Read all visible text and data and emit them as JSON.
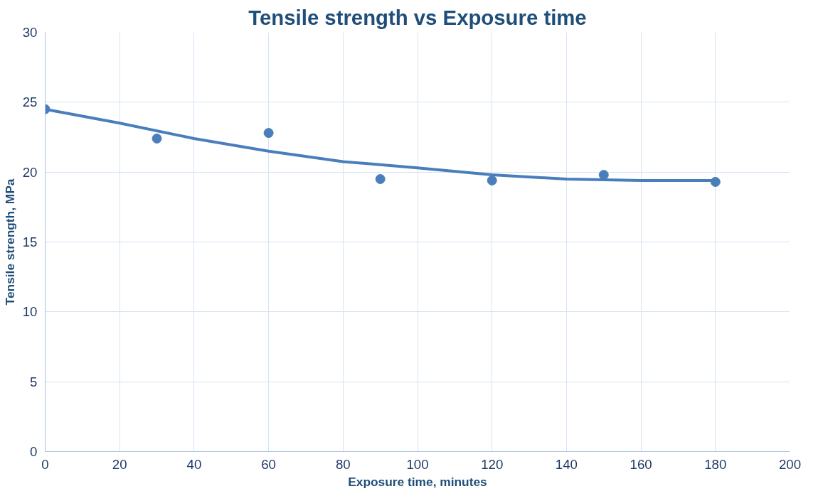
{
  "chart_data": {
    "type": "scatter",
    "title": "Tensile strength vs Exposure time",
    "xlabel": "Exposure time, minutes",
    "ylabel": "Tensile strength, MPa",
    "series": [
      {
        "color": "#4a7ebb",
        "marker": "circle",
        "x": [
          0,
          30,
          60,
          90,
          120,
          150,
          180
        ],
        "values": [
          24.5,
          22.4,
          22.8,
          19.5,
          19.4,
          19.8,
          19.3
        ]
      },
      {
        "type": "line",
        "marker": "none",
        "color": "#4a7ebb",
        "x": [
          0,
          20,
          40,
          60,
          80,
          100,
          120,
          140,
          160,
          180
        ],
        "values": [
          24.5,
          23.5,
          22.4,
          21.5,
          20.75,
          20.3,
          19.8,
          19.5,
          19.4,
          19.4
        ]
      }
    ],
    "xlim": [
      0,
      200
    ],
    "xticks": [
      0,
      20,
      40,
      60,
      80,
      100,
      120,
      140,
      160,
      180,
      200
    ],
    "ylim": [
      0,
      30
    ],
    "yticks": [
      0,
      5,
      10,
      15,
      20,
      25,
      30
    ],
    "grid": true,
    "line_style": "solid"
  }
}
